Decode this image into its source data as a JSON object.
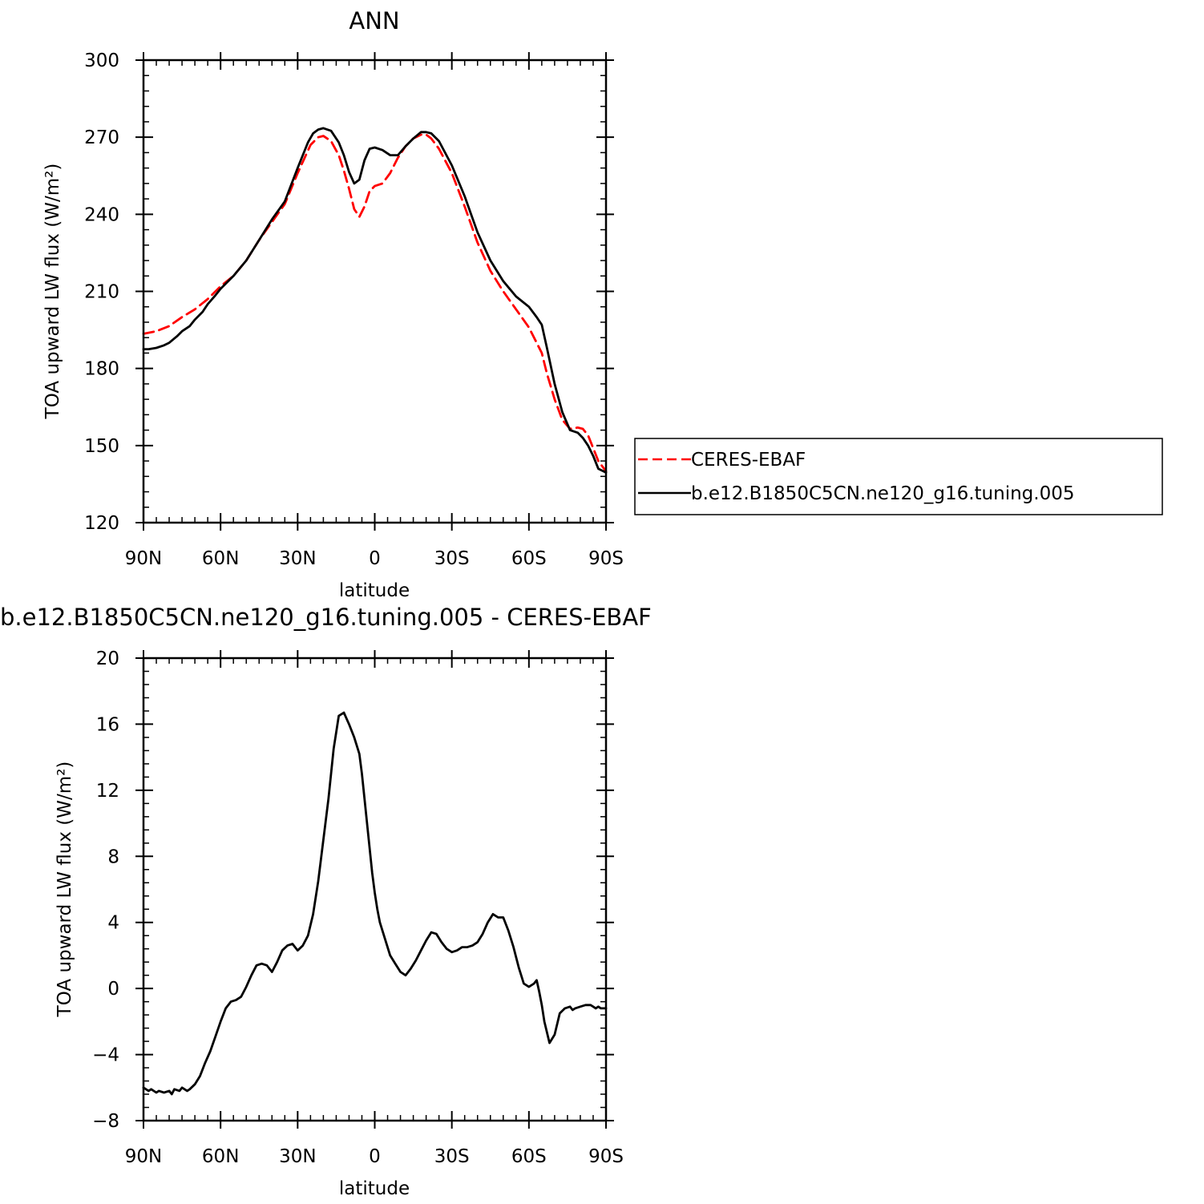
{
  "chart_data": [
    {
      "type": "line",
      "title": "ANN",
      "xlabel": "latitude",
      "ylabel": "TOA upward LW flux (W/m²)",
      "xlim": [
        90,
        -90
      ],
      "ylim": [
        120,
        300
      ],
      "xticks": [
        90,
        60,
        30,
        0,
        -30,
        -60,
        -90
      ],
      "xtick_labels": [
        "90N",
        "60N",
        "30N",
        "0",
        "30S",
        "60S",
        "90S"
      ],
      "yticks": [
        120,
        150,
        180,
        210,
        240,
        270,
        300
      ],
      "ytick_labels": [
        "120",
        "150",
        "180",
        "210",
        "240",
        "270",
        "300"
      ],
      "legend_position": "right",
      "series": [
        {
          "name": "CERES-EBAF",
          "color": "#ff0000",
          "dash": "dashed",
          "x": [
            90,
            85,
            80,
            75,
            70,
            65,
            60,
            55,
            50,
            45,
            40,
            35,
            30,
            25,
            22,
            20,
            17,
            14,
            12,
            10,
            8,
            6,
            4,
            2,
            0,
            -3,
            -6,
            -9,
            -12,
            -15,
            -18,
            -20,
            -22,
            -25,
            -30,
            -35,
            -40,
            -45,
            -50,
            -55,
            -60,
            -65,
            -67,
            -70,
            -73,
            -76,
            -79,
            -81,
            -83,
            -85,
            -87,
            -90
          ],
          "y": [
            193.5,
            194.5,
            196.5,
            200,
            203,
            207,
            212,
            216,
            222,
            230,
            237,
            244,
            256,
            267,
            270,
            270.5,
            268.5,
            263,
            257,
            250,
            242,
            239,
            243,
            249,
            251,
            252,
            256,
            262,
            266.5,
            269.5,
            271,
            271,
            269.5,
            265.5,
            256,
            243,
            229,
            218,
            210,
            203,
            196,
            186,
            178,
            168,
            160,
            156.5,
            157,
            156.5,
            154,
            149,
            144,
            140
          ]
        },
        {
          "name": "b.e12.B1850C5CN.ne120_g16.tuning.005",
          "color": "#000000",
          "dash": "solid",
          "x": [
            90,
            88,
            85,
            82,
            80,
            77,
            75,
            72,
            70,
            67,
            65,
            62,
            60,
            55,
            50,
            45,
            40,
            35,
            30,
            26,
            24,
            22,
            20,
            17,
            14,
            12,
            10,
            8,
            6,
            4,
            2,
            0,
            -3,
            -6,
            -9,
            -12,
            -15,
            -18,
            -20,
            -22,
            -25,
            -30,
            -35,
            -40,
            -45,
            -50,
            -55,
            -60,
            -63,
            -65,
            -67,
            -70,
            -73,
            -76,
            -79,
            -81,
            -83,
            -85,
            -87,
            -90
          ],
          "y": [
            187.5,
            187.5,
            188,
            189,
            190,
            192.5,
            194.5,
            196.5,
            199,
            202,
            205,
            208.5,
            211,
            216,
            222,
            230,
            238,
            245,
            258,
            268,
            271.5,
            273,
            273.5,
            272.5,
            268,
            263,
            256.5,
            252,
            253.5,
            261,
            265.5,
            266,
            265,
            263,
            263,
            266.5,
            269.5,
            272,
            272,
            271.5,
            268.5,
            259,
            247,
            233,
            222,
            214,
            208,
            204,
            200,
            197,
            188,
            174,
            163,
            156,
            155,
            153,
            150,
            146,
            141,
            139.5
          ]
        }
      ]
    },
    {
      "type": "line",
      "title": "b.e12.B1850C5CN.ne120_g16.tuning.005 - CERES-EBAF",
      "xlabel": "latitude",
      "ylabel": "TOA upward LW flux (W/m²)",
      "xlim": [
        90,
        -90
      ],
      "ylim": [
        -8,
        20
      ],
      "xticks": [
        90,
        60,
        30,
        0,
        -30,
        -60,
        -90
      ],
      "xtick_labels": [
        "90N",
        "60N",
        "30N",
        "0",
        "30S",
        "60S",
        "90S"
      ],
      "yticks": [
        -8,
        -4,
        0,
        4,
        8,
        12,
        16,
        20
      ],
      "ytick_labels": [
        "−8",
        "−4",
        "0",
        "4",
        "8",
        "12",
        "16",
        "20"
      ],
      "series": [
        {
          "color": "#000000",
          "dash": "solid",
          "x": [
            90,
            88,
            87,
            85,
            84,
            82,
            80,
            79,
            78,
            76,
            75,
            73,
            72,
            70,
            68,
            66,
            64,
            62,
            60,
            58,
            56,
            54,
            52,
            50,
            48,
            46,
            44,
            42,
            40,
            38,
            36,
            34,
            32,
            30,
            28,
            26,
            24,
            22,
            20,
            18,
            16,
            14,
            12,
            10,
            8,
            6,
            5,
            4,
            3,
            2,
            1,
            0,
            -1,
            -2,
            -4,
            -6,
            -8,
            -10,
            -12,
            -14,
            -16,
            -18,
            -20,
            -22,
            -24,
            -26,
            -28,
            -30,
            -32,
            -34,
            -36,
            -38,
            -40,
            -42,
            -44,
            -46,
            -48,
            -50,
            -52,
            -54,
            -56,
            -58,
            -60,
            -62,
            -63,
            -64,
            -65,
            -66,
            -68,
            -70,
            -72,
            -74,
            -76,
            -77,
            -78,
            -80,
            -82,
            -84,
            -85,
            -86,
            -87,
            -88,
            -89,
            -90
          ],
          "y": [
            -6,
            -6.2,
            -6.1,
            -6.3,
            -6.2,
            -6.3,
            -6.2,
            -6.4,
            -6.1,
            -6.2,
            -6.0,
            -6.2,
            -6.1,
            -5.8,
            -5.3,
            -4.5,
            -3.8,
            -2.9,
            -2.0,
            -1.2,
            -0.8,
            -0.7,
            -0.5,
            0.1,
            0.8,
            1.4,
            1.5,
            1.4,
            1.0,
            1.6,
            2.3,
            2.6,
            2.7,
            2.3,
            2.6,
            3.2,
            4.5,
            6.5,
            9.0,
            11.5,
            14.5,
            16.5,
            16.7,
            16.0,
            15.2,
            14.2,
            13.0,
            11.5,
            10.0,
            8.5,
            7.0,
            5.8,
            4.8,
            4.0,
            3.0,
            2.0,
            1.5,
            1.0,
            0.8,
            1.2,
            1.7,
            2.3,
            2.9,
            3.4,
            3.3,
            2.8,
            2.4,
            2.2,
            2.3,
            2.5,
            2.5,
            2.6,
            2.8,
            3.3,
            4.0,
            4.5,
            4.3,
            4.3,
            3.5,
            2.5,
            1.3,
            0.3,
            0.1,
            0.3,
            0.5,
            -0.2,
            -1.0,
            -2.0,
            -3.3,
            -2.8,
            -1.5,
            -1.2,
            -1.1,
            -1.3,
            -1.2,
            -1.1,
            -1.0,
            -1.0,
            -1.1,
            -1.2,
            -1.1,
            -1.2,
            -1.2,
            -1.2
          ]
        }
      ]
    }
  ]
}
